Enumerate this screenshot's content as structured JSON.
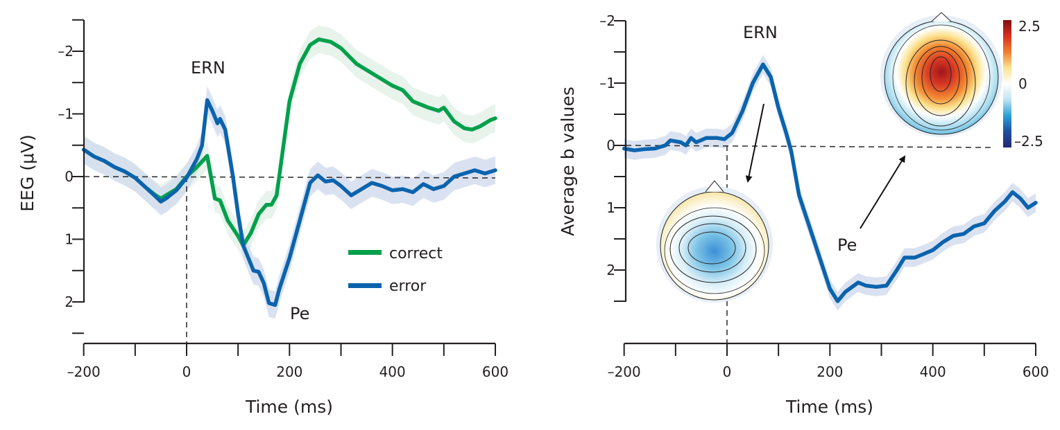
{
  "chart_data": [
    {
      "type": "line",
      "title": "",
      "xlabel": "Time (ms)",
      "ylabel": "EEG (μV)",
      "xlim": [
        -200,
        600
      ],
      "ylim": [
        -2.5,
        2.5
      ],
      "y_inverted": true,
      "xticks": [
        -200,
        0,
        200,
        400,
        600
      ],
      "xtick_labels": [
        "–200",
        "0",
        "200",
        "400",
        "600"
      ],
      "yticks": [
        -2,
        -1,
        0,
        1,
        2
      ],
      "ytick_labels": [
        "–2",
        "–1",
        "0",
        "1",
        "2"
      ],
      "grid": false,
      "legend": "bottom-right",
      "reference_lines": {
        "y": 0,
        "x": 0
      },
      "annotations": [
        {
          "text": "ERN",
          "x": 30,
          "y": -2.0
        },
        {
          "text": "Pe",
          "x": 215,
          "y": 2.2
        }
      ],
      "series": [
        {
          "name": "correct",
          "color": "#00a04b",
          "band_color": "#e3f1e8",
          "x": [
            -200,
            -180,
            -160,
            -140,
            -120,
            -100,
            -80,
            -60,
            -50,
            -40,
            -20,
            0,
            20,
            40,
            55,
            65,
            80,
            100,
            110,
            125,
            140,
            155,
            165,
            175,
            185,
            200,
            220,
            240,
            257,
            280,
            300,
            330,
            360,
            380,
            400,
            420,
            440,
            470,
            490,
            500,
            520,
            540,
            555,
            570,
            590,
            600
          ],
          "y": [
            -0.43,
            -0.32,
            -0.25,
            -0.15,
            -0.08,
            0.02,
            0.17,
            0.3,
            0.35,
            0.3,
            0.2,
            0.0,
            -0.15,
            -0.33,
            0.35,
            0.38,
            0.7,
            0.95,
            1.1,
            0.9,
            0.6,
            0.45,
            0.45,
            0.3,
            -0.3,
            -1.2,
            -1.8,
            -2.1,
            -2.19,
            -2.15,
            -2.05,
            -1.8,
            -1.65,
            -1.55,
            -1.45,
            -1.38,
            -1.2,
            -1.1,
            -1.05,
            -1.1,
            -0.88,
            -0.77,
            -0.75,
            -0.8,
            -0.9,
            -0.93
          ],
          "band_halfwidth": 0.22
        },
        {
          "name": "error",
          "color": "#0b63ad",
          "band_color": "#d3ddef",
          "x": [
            -200,
            -180,
            -160,
            -140,
            -120,
            -100,
            -80,
            -60,
            -50,
            -40,
            -20,
            0,
            20,
            30,
            40,
            50,
            60,
            65,
            75,
            90,
            100,
            110,
            120,
            130,
            140,
            150,
            160,
            172,
            180,
            200,
            220,
            240,
            255,
            270,
            285,
            300,
            320,
            340,
            360,
            380,
            400,
            420,
            440,
            460,
            480,
            500,
            520,
            540,
            560,
            580,
            600
          ],
          "y": [
            -0.43,
            -0.32,
            -0.25,
            -0.15,
            -0.08,
            0.02,
            0.17,
            0.32,
            0.4,
            0.35,
            0.22,
            0.02,
            -0.28,
            -0.5,
            -1.22,
            -1.05,
            -0.85,
            -0.92,
            -0.75,
            0.0,
            0.6,
            1.1,
            1.3,
            1.5,
            1.52,
            1.7,
            2.02,
            2.05,
            1.8,
            1.3,
            0.7,
            0.1,
            -0.02,
            0.08,
            0.06,
            0.15,
            0.3,
            0.2,
            0.1,
            0.15,
            0.22,
            0.2,
            0.25,
            0.12,
            0.2,
            0.15,
            0.0,
            -0.05,
            -0.1,
            -0.05,
            -0.1
          ],
          "band_halfwidth": 0.22
        }
      ]
    },
    {
      "type": "line",
      "title": "",
      "xlabel": "Time (ms)",
      "ylabel": "Average b values",
      "xlim": [
        -200,
        600
      ],
      "ylim": [
        -2.0,
        2.5
      ],
      "y_inverted": true,
      "xticks": [
        -200,
        0,
        200,
        400,
        600
      ],
      "xtick_labels": [
        "–200",
        "0",
        "200",
        "400",
        "600"
      ],
      "yticks": [
        -2,
        -1,
        0,
        1,
        2
      ],
      "ytick_labels": [
        "–2",
        "–1",
        "0",
        "1",
        "2"
      ],
      "grid": false,
      "reference_lines": {
        "y": 0,
        "x": 0
      },
      "annotations": [
        {
          "text": "ERN",
          "x": 55,
          "y": -1.7
        },
        {
          "text": "Pe",
          "x": 215,
          "y": 1.65
        }
      ],
      "series": [
        {
          "name": "b values",
          "color": "#0b63ad",
          "band_color": "#d3ddef",
          "x": [
            -200,
            -180,
            -160,
            -140,
            -120,
            -110,
            -90,
            -80,
            -70,
            -60,
            -40,
            -20,
            -5,
            10,
            30,
            50,
            70,
            85,
            100,
            115,
            125,
            140,
            160,
            180,
            200,
            215,
            230,
            255,
            270,
            290,
            310,
            330,
            345,
            365,
            380,
            400,
            420,
            440,
            460,
            480,
            500,
            520,
            540,
            555,
            570,
            585,
            600
          ],
          "y": [
            0.05,
            0.08,
            0.06,
            0.05,
            0.0,
            -0.08,
            -0.05,
            0.0,
            -0.12,
            -0.05,
            -0.12,
            -0.12,
            -0.1,
            -0.2,
            -0.55,
            -1.0,
            -1.3,
            -1.1,
            -0.6,
            -0.2,
            0.1,
            0.8,
            1.3,
            1.8,
            2.3,
            2.5,
            2.35,
            2.2,
            2.25,
            2.27,
            2.25,
            2.0,
            1.8,
            1.8,
            1.75,
            1.68,
            1.55,
            1.45,
            1.42,
            1.3,
            1.25,
            1.05,
            0.9,
            0.75,
            0.85,
            1.0,
            0.92
          ],
          "band_halfwidth": 0.15
        }
      ],
      "insets": [
        {
          "name": "ERN topography",
          "description": "central negative (blue) scalp map"
        },
        {
          "name": "Pe topography",
          "description": "central positive (red) scalp map"
        }
      ],
      "colorbar": {
        "ticks": [
          2.5,
          0,
          -2.5
        ],
        "tick_labels": [
          "2.5",
          "0",
          "–2.5"
        ],
        "colors": [
          "#7f0d12",
          "#d7301f",
          "#f07f2f",
          "#fbe38c",
          "#ffffff",
          "#bfe4f2",
          "#2aa0d8",
          "#1f4f9e",
          "#1f2a6f"
        ]
      }
    }
  ]
}
